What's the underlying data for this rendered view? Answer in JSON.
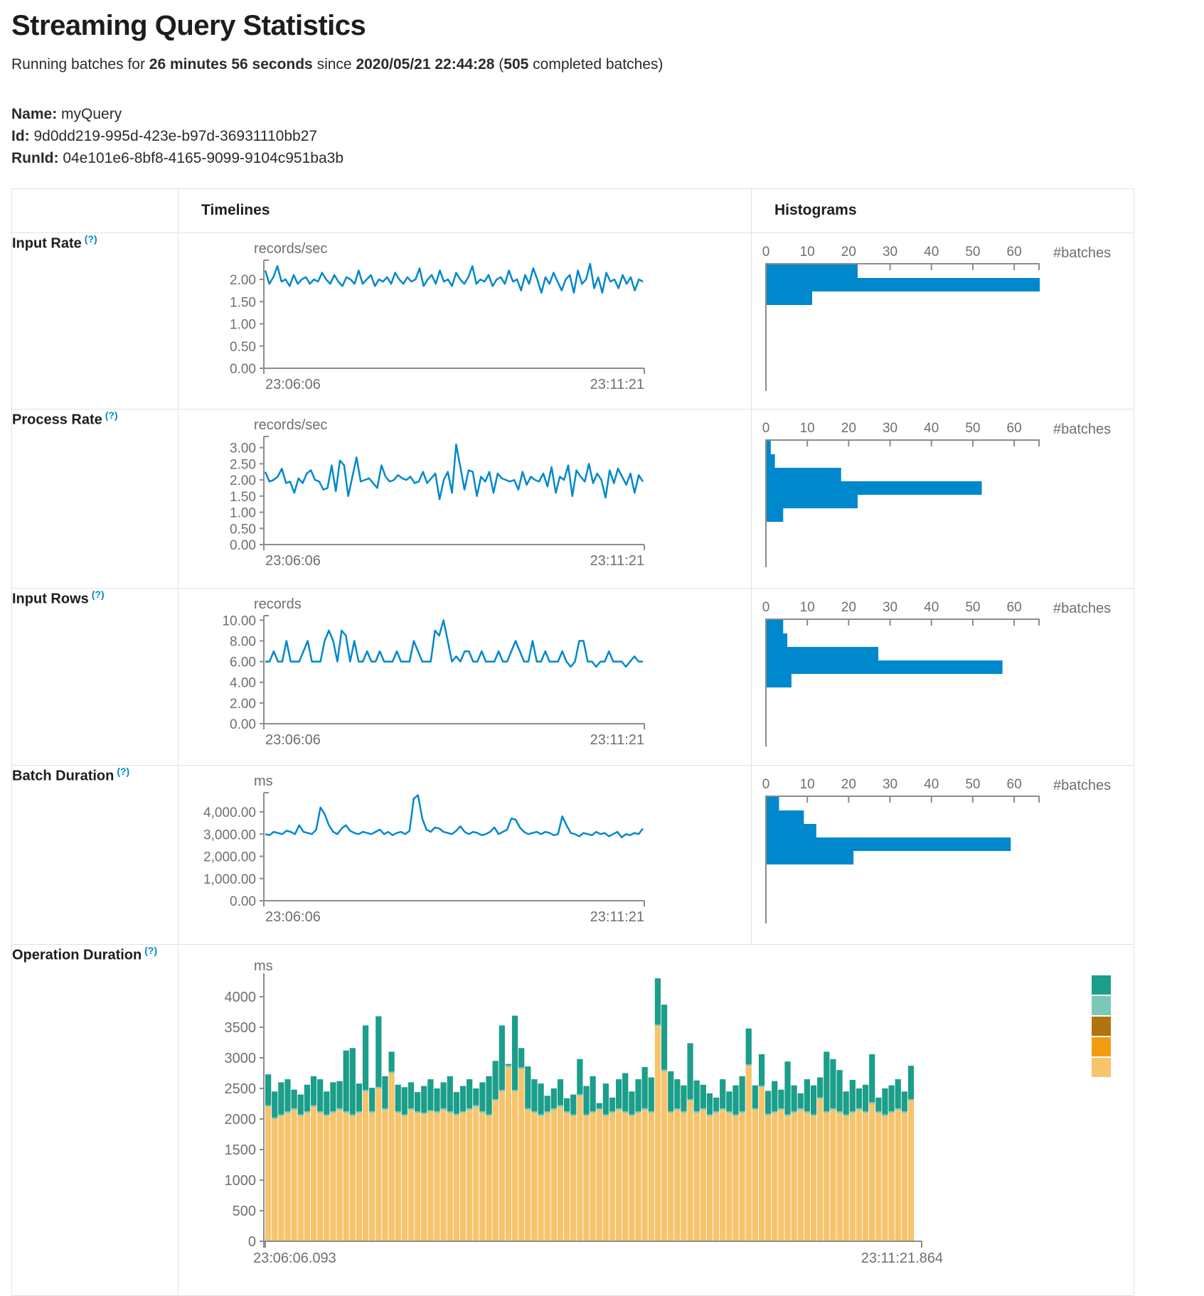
{
  "colors": {
    "blue": "#0088cc",
    "axis_line": "#8c8c8c",
    "tick_text": "#6f6f6f",
    "border": "#dee2e6",
    "stack_bottom": "#f7c46c",
    "stack_sliver": "#7cc7b5",
    "stack_top": "#1b9e8a",
    "help": "#0088cc"
  },
  "header": {
    "title": "Streaming Query Statistics",
    "status": {
      "prefix": "Running batches for ",
      "duration": "26 minutes 56 seconds",
      "middle": " since ",
      "start_time": "2020/05/21 22:44:28",
      "open_paren": " (",
      "batch_count": "505",
      "suffix": " completed batches)"
    },
    "meta": {
      "name_label": "Name:",
      "name_value": " myQuery",
      "id_label": "Id:",
      "id_value": " 9d0dd219-995d-423e-b97d-36931110bb27",
      "runid_label": "RunId:",
      "runid_value": " 04e101e6-8bf8-4165-9099-9104c951ba3b"
    }
  },
  "table": {
    "timelines_header": "Timelines",
    "histograms_header": "Histograms",
    "rows": [
      {
        "label": "Input Rate",
        "help": "(?)"
      },
      {
        "label": "Process Rate",
        "help": "(?)"
      },
      {
        "label": "Input Rows",
        "help": "(?)"
      },
      {
        "label": "Batch Duration",
        "help": "(?)"
      },
      {
        "label": "Operation Duration",
        "help": "(?)"
      }
    ]
  },
  "chart_data": [
    {
      "id": "input-rate-timeline",
      "type": "line",
      "unit": "records/sec",
      "x_start_label": "23:06:06",
      "x_end_label": "23:11:21",
      "yticks": [
        {
          "v": 0,
          "label": "0.00"
        },
        {
          "v": 0.5,
          "label": "0.50"
        },
        {
          "v": 1,
          "label": "1.00"
        },
        {
          "v": 1.5,
          "label": "1.50"
        },
        {
          "v": 2,
          "label": "2.00"
        }
      ],
      "ymax": 2.4,
      "values": [
        2.2,
        1.9,
        2.05,
        2.3,
        1.95,
        2.0,
        1.85,
        2.1,
        1.9,
        2.0,
        2.05,
        1.9,
        2.0,
        1.95,
        2.15,
        2.0,
        1.9,
        2.1,
        1.95,
        1.85,
        2.05,
        2.0,
        1.9,
        2.2,
        1.9,
        2.0,
        2.1,
        1.85,
        2.0,
        1.95,
        2.05,
        1.9,
        2.15,
        2.0,
        1.9,
        2.05,
        1.95,
        2.0,
        2.25,
        1.85,
        2.0,
        2.1,
        1.9,
        2.2,
        1.95,
        2.0,
        1.85,
        2.15,
        2.0,
        1.9,
        2.05,
        2.3,
        1.9,
        2.0,
        1.95,
        2.1,
        1.85,
        2.0,
        2.05,
        1.9,
        2.2,
        1.95,
        2.0,
        1.75,
        2.1,
        1.9,
        2.25,
        2.0,
        1.7,
        2.05,
        1.9,
        2.15,
        1.95,
        1.75,
        2.0,
        2.1,
        1.7,
        2.2,
        1.9,
        2.0,
        2.35,
        1.8,
        2.05,
        1.7,
        2.15,
        1.95,
        2.0,
        1.8,
        2.1,
        1.9,
        2.05,
        1.75,
        2.0,
        1.95
      ]
    },
    {
      "id": "input-rate-histogram",
      "type": "histogram",
      "xlabel": "#batches",
      "xticks": [
        0,
        10,
        20,
        30,
        40,
        50,
        60
      ],
      "xmax": 66,
      "values": [
        22,
        66,
        11
      ]
    },
    {
      "id": "process-rate-timeline",
      "type": "line",
      "unit": "records/sec",
      "x_start_label": "23:06:06",
      "x_end_label": "23:11:21",
      "yticks": [
        {
          "v": 0,
          "label": "0.00"
        },
        {
          "v": 0.5,
          "label": "0.50"
        },
        {
          "v": 1,
          "label": "1.00"
        },
        {
          "v": 1.5,
          "label": "1.50"
        },
        {
          "v": 2,
          "label": "2.00"
        },
        {
          "v": 2.5,
          "label": "2.50"
        },
        {
          "v": 3,
          "label": "3.00"
        }
      ],
      "ymax": 3.3,
      "values": [
        2.25,
        1.95,
        2.0,
        2.1,
        2.35,
        1.9,
        1.95,
        1.6,
        2.05,
        1.9,
        2.2,
        2.3,
        2.0,
        1.95,
        1.7,
        1.75,
        2.45,
        1.65,
        2.6,
        2.45,
        1.5,
        2.1,
        2.7,
        1.95,
        2.0,
        2.05,
        1.9,
        1.75,
        2.45,
        2.1,
        1.95,
        2.0,
        2.15,
        2.05,
        2.0,
        2.1,
        1.9,
        1.95,
        2.25,
        1.9,
        2.05,
        2.2,
        1.4,
        2.0,
        2.25,
        1.6,
        3.1,
        2.4,
        1.7,
        2.3,
        2.25,
        1.5,
        2.1,
        1.95,
        2.25,
        1.6,
        2.2,
        2.05,
        2.0,
        1.95,
        2.0,
        1.7,
        2.25,
        1.85,
        2.1,
        2.0,
        1.95,
        2.2,
        1.8,
        2.4,
        1.6,
        2.1,
        2.0,
        2.45,
        1.5,
        2.3,
        2.1,
        1.95,
        2.5,
        1.9,
        2.2,
        2.0,
        1.45,
        2.3,
        1.9,
        2.35,
        2.1,
        1.85,
        2.2,
        1.6,
        2.15,
        1.95
      ]
    },
    {
      "id": "process-rate-histogram",
      "type": "histogram",
      "xlabel": "#batches",
      "xticks": [
        0,
        10,
        20,
        30,
        40,
        50,
        60
      ],
      "xmax": 66,
      "values": [
        1,
        2,
        18,
        52,
        22,
        4
      ]
    },
    {
      "id": "input-rows-timeline",
      "type": "line",
      "unit": "records",
      "x_start_label": "23:06:06",
      "x_end_label": "23:11:21",
      "yticks": [
        {
          "v": 0,
          "label": "0.00"
        },
        {
          "v": 2,
          "label": "2.00"
        },
        {
          "v": 4,
          "label": "4.00"
        },
        {
          "v": 6,
          "label": "6.00"
        },
        {
          "v": 8,
          "label": "8.00"
        },
        {
          "v": 10,
          "label": "10.00"
        }
      ],
      "ymax": 10.3,
      "values": [
        6,
        6,
        7,
        6,
        6,
        8,
        6,
        6,
        6,
        7,
        8,
        6,
        6,
        6,
        8,
        9,
        8,
        6,
        9,
        8.5,
        6,
        8,
        6,
        6,
        7,
        6,
        6,
        7,
        6,
        6,
        6,
        7,
        6,
        6,
        6,
        8,
        7,
        6,
        6,
        6,
        9,
        8.5,
        10,
        8,
        6,
        6.5,
        6,
        7,
        7,
        6,
        6,
        7,
        6,
        6,
        6,
        7,
        6,
        6,
        7,
        8,
        7,
        6,
        6,
        8,
        6,
        6,
        7,
        6,
        6,
        6,
        7,
        6,
        5.5,
        6,
        8,
        8,
        6,
        6,
        5.5,
        6,
        6,
        7,
        6,
        6,
        6,
        5.5,
        6,
        6.5,
        6,
        6
      ]
    },
    {
      "id": "input-rows-histogram",
      "type": "histogram",
      "xlabel": "#batches",
      "xticks": [
        0,
        10,
        20,
        30,
        40,
        50,
        60
      ],
      "xmax": 66,
      "values": [
        4,
        5,
        27,
        57,
        6
      ]
    },
    {
      "id": "batch-duration-timeline",
      "type": "line",
      "unit": "ms",
      "x_start_label": "23:06:06",
      "x_end_label": "23:11:21",
      "yticks": [
        {
          "v": 0,
          "label": "0.00"
        },
        {
          "v": 1000,
          "label": "1,000.00"
        },
        {
          "v": 2000,
          "label": "2,000.00"
        },
        {
          "v": 3000,
          "label": "3,000.00"
        },
        {
          "v": 4000,
          "label": "4,000.00"
        }
      ],
      "ymax": 4800,
      "values": [
        3000,
        2950,
        3100,
        3050,
        3000,
        3150,
        3100,
        3000,
        3400,
        3100,
        3050,
        3000,
        3200,
        4200,
        3900,
        3400,
        3100,
        3000,
        3250,
        3400,
        3150,
        3050,
        3000,
        3100,
        3050,
        3000,
        3100,
        3200,
        3000,
        3100,
        2950,
        3050,
        3100,
        3000,
        3150,
        4600,
        4750,
        3700,
        3200,
        3100,
        3300,
        3250,
        3100,
        3050,
        3000,
        3150,
        3350,
        3100,
        3000,
        3100,
        3050,
        2950,
        3000,
        3100,
        3300,
        3000,
        3100,
        3200,
        3700,
        3650,
        3300,
        3100,
        3000,
        3050,
        3100,
        3000,
        3100,
        3050,
        2950,
        3000,
        3800,
        3400,
        3050,
        3000,
        2900,
        3050,
        3000,
        2950,
        3100,
        3000,
        3050,
        2900,
        3000,
        3100,
        2850,
        3000,
        2950,
        3050,
        3000,
        3250
      ]
    },
    {
      "id": "batch-duration-histogram",
      "type": "histogram",
      "xlabel": "#batches",
      "xticks": [
        0,
        10,
        20,
        30,
        40,
        50,
        60
      ],
      "xmax": 66,
      "values": [
        3,
        9,
        12,
        59,
        21
      ]
    },
    {
      "id": "operation-duration",
      "type": "stacked-bar",
      "unit": "ms",
      "x_start_label": "23:06:06.093",
      "x_end_label": "23:11:21.864",
      "yticks": [
        {
          "v": 0,
          "label": "0"
        },
        {
          "v": 500,
          "label": "500"
        },
        {
          "v": 1000,
          "label": "1000"
        },
        {
          "v": 1500,
          "label": "1500"
        },
        {
          "v": 2000,
          "label": "2000"
        },
        {
          "v": 2500,
          "label": "2500"
        },
        {
          "v": 3000,
          "label": "3000"
        },
        {
          "v": 3500,
          "label": "3500"
        },
        {
          "v": 4000,
          "label": "4000"
        }
      ],
      "ymax": 4400,
      "sliver": 25,
      "totals": [
        2730,
        2450,
        2600,
        2650,
        2480,
        2400,
        2560,
        2700,
        2650,
        2450,
        2600,
        2620,
        3120,
        3160,
        2580,
        3530,
        2510,
        3680,
        2700,
        3100,
        2560,
        2520,
        2600,
        2440,
        2540,
        2650,
        2500,
        2600,
        2700,
        2440,
        2540,
        2650,
        2500,
        2600,
        2700,
        2950,
        3530,
        2900,
        3690,
        3160,
        2860,
        2650,
        2580,
        2380,
        2500,
        2650,
        2340,
        2400,
        2980,
        2540,
        2700,
        2260,
        2580,
        2350,
        2650,
        2750,
        2450,
        2650,
        2850,
        2680,
        4300,
        3870,
        2780,
        2650,
        2550,
        3240,
        2630,
        2560,
        2420,
        2350,
        2650,
        2450,
        2550,
        2700,
        3480,
        2550,
        3060,
        2460,
        2620,
        2480,
        2940,
        2550,
        2420,
        2650,
        2550,
        2680,
        3100,
        2980,
        2800,
        2450,
        2640,
        2500,
        2560,
        3060,
        2350,
        2500,
        2550,
        2650,
        2450,
        2870
      ],
      "orange": [
        2200,
        2000,
        2050,
        2100,
        2150,
        2050,
        2100,
        2200,
        2100,
        2050,
        2100,
        2150,
        2100,
        2050,
        2100,
        2450,
        2100,
        2500,
        2150,
        2750,
        2100,
        2050,
        2150,
        2100,
        2080,
        2120,
        2100,
        2150,
        2100,
        2060,
        2100,
        2150,
        2200,
        2100,
        2050,
        2300,
        2450,
        2850,
        2450,
        2820,
        2150,
        2100,
        2050,
        2100,
        2150,
        2200,
        2100,
        2050,
        2380,
        2050,
        2100,
        2150,
        2050,
        2100,
        2150,
        2100,
        2050,
        2100,
        2150,
        2100,
        3520,
        2780,
        2100,
        2150,
        2100,
        2300,
        2100,
        2150,
        2050,
        2100,
        2150,
        2100,
        2050,
        2100,
        2870,
        2150,
        2520,
        2060,
        2100,
        2150,
        2050,
        2100,
        2150,
        2100,
        2050,
        2330,
        2100,
        2150,
        2100,
        2050,
        2100,
        2150,
        2100,
        2250,
        2100,
        2050,
        2100,
        2150,
        2100,
        2300
      ],
      "legend_colors": [
        "#1b9e8a",
        "#7cc7b5",
        "#b1740f",
        "#f39c12",
        "#f7c46c"
      ]
    }
  ]
}
